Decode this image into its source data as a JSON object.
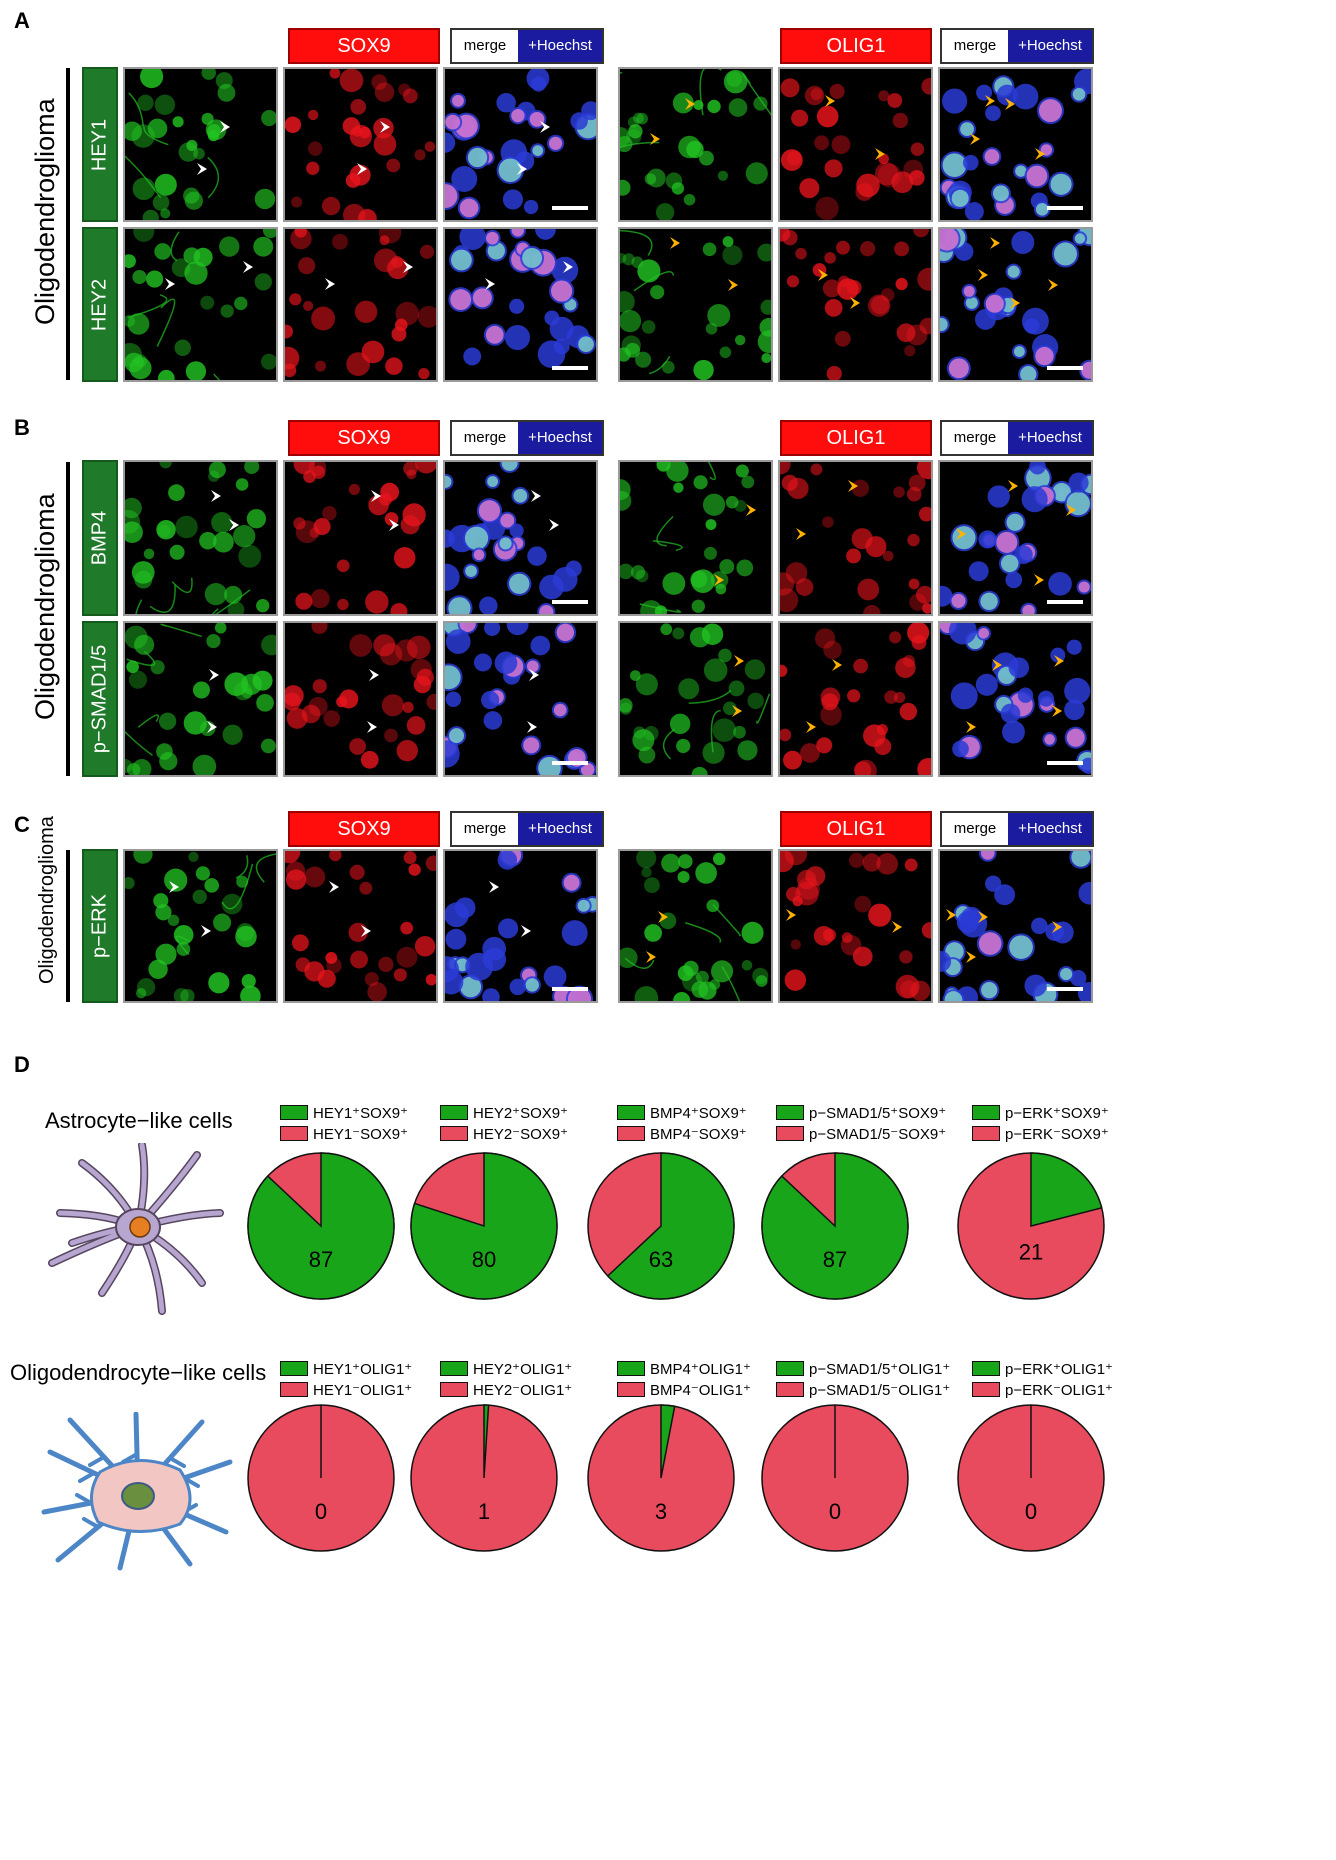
{
  "panels": {
    "A": {
      "letter": "A",
      "group_label": "Oligodendroglioma",
      "markers": [
        "HEY1",
        "HEY2"
      ]
    },
    "B": {
      "letter": "B",
      "group_label": "Oligodendroglioma",
      "markers": [
        "BMP4",
        "p−SMAD1/5"
      ]
    },
    "C": {
      "letter": "C",
      "group_label": "Oligodendroglioma",
      "markers": [
        "p−ERK"
      ]
    },
    "D": {
      "letter": "D"
    }
  },
  "channel_labels": {
    "sox9": "SOX9",
    "olig1": "OLIG1",
    "merge": "merge",
    "hoechst": "+Hoechst"
  },
  "colors": {
    "green_channel": "#22c322",
    "red_channel": "#e8141c",
    "blue_channel": "#2a3bd6",
    "white_arrowhead": "#ffffff",
    "orange_arrow": "#ffb300",
    "pie_positive": "#19a519",
    "pie_negative": "#e94b5e",
    "marker_tag": "#1f7a2a",
    "channel_tag": "#ff0d0d",
    "hoechst_tag": "#1b1ba0"
  },
  "section_D": {
    "astro_label": "Astrocyte−like cells",
    "oligo_label": "Oligodendrocyte−like cells",
    "astro_icon": "astrocyte-cell-icon",
    "oligo_icon": "oligodendrocyte-cell-icon"
  },
  "chart_data": [
    {
      "type": "pie",
      "row": "Astrocyte−like cells",
      "labels": [
        "HEY1⁺SOX9⁺",
        "HEY1⁻SOX9⁺"
      ],
      "values": [
        87,
        13
      ],
      "label_shown": "87"
    },
    {
      "type": "pie",
      "row": "Astrocyte−like cells",
      "labels": [
        "HEY2⁺SOX9⁺",
        "HEY2⁻SOX9⁺"
      ],
      "values": [
        80,
        20
      ],
      "label_shown": "80"
    },
    {
      "type": "pie",
      "row": "Astrocyte−like cells",
      "labels": [
        "BMP4⁺SOX9⁺",
        "BMP4⁻SOX9⁺"
      ],
      "values": [
        63,
        37
      ],
      "label_shown": "63"
    },
    {
      "type": "pie",
      "row": "Astrocyte−like cells",
      "labels": [
        "p−SMAD1/5⁺SOX9⁺",
        "p−SMAD1/5⁻SOX9⁺"
      ],
      "values": [
        87,
        13
      ],
      "label_shown": "87"
    },
    {
      "type": "pie",
      "row": "Astrocyte−like cells",
      "labels": [
        "p−ERK⁺SOX9⁺",
        "p−ERK⁻SOX9⁺"
      ],
      "values": [
        21,
        79
      ],
      "label_shown": "21"
    },
    {
      "type": "pie",
      "row": "Oligodendrocyte−like cells",
      "labels": [
        "HEY1⁺OLIG1⁺",
        "HEY1⁻OLIG1⁺"
      ],
      "values": [
        0,
        100
      ],
      "label_shown": "0"
    },
    {
      "type": "pie",
      "row": "Oligodendrocyte−like cells",
      "labels": [
        "HEY2⁺OLIG1⁺",
        "HEY2⁻OLIG1⁺"
      ],
      "values": [
        1,
        99
      ],
      "label_shown": "1"
    },
    {
      "type": "pie",
      "row": "Oligodendrocyte−like cells",
      "labels": [
        "BMP4⁺OLIG1⁺",
        "BMP4⁻OLIG1⁺"
      ],
      "values": [
        3,
        97
      ],
      "label_shown": "3"
    },
    {
      "type": "pie",
      "row": "Oligodendrocyte−like cells",
      "labels": [
        "p−SMAD1/5⁺OLIG1⁺",
        "p−SMAD1/5⁻OLIG1⁺"
      ],
      "values": [
        0,
        100
      ],
      "label_shown": "0"
    },
    {
      "type": "pie",
      "row": "Oligodendrocyte−like cells",
      "labels": [
        "p−ERK⁺OLIG1⁺",
        "p−ERK⁻OLIG1⁺"
      ],
      "values": [
        0,
        100
      ],
      "label_shown": "0"
    }
  ]
}
